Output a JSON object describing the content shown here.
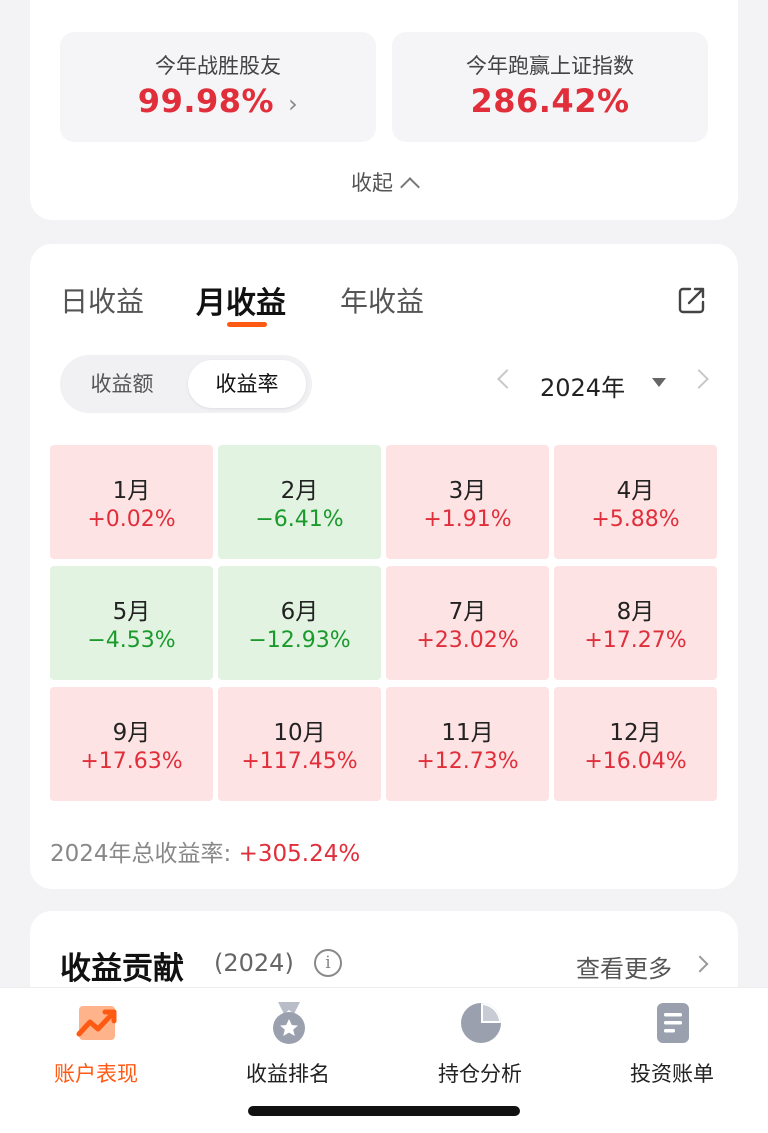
{
  "top_stats": {
    "beat_friends_label": "今年战胜股友",
    "beat_friends_value": "99.98%",
    "beat_index_label": "今年跑赢上证指数",
    "beat_index_value": "286.42%",
    "collapse_label": "收起"
  },
  "tabs": [
    {
      "label": "日收益",
      "active": false
    },
    {
      "label": "月收益",
      "active": true
    },
    {
      "label": "年收益",
      "active": false
    }
  ],
  "toggle": {
    "amount_label": "收益额",
    "rate_label": "收益率",
    "active": "rate"
  },
  "year_selector": {
    "label": "2024年"
  },
  "months": [
    {
      "name": "1月",
      "value": "+0.02%",
      "trend": "pos"
    },
    {
      "name": "2月",
      "value": "−6.41%",
      "trend": "neg"
    },
    {
      "name": "3月",
      "value": "+1.91%",
      "trend": "pos"
    },
    {
      "name": "4月",
      "value": "+5.88%",
      "trend": "pos"
    },
    {
      "name": "5月",
      "value": "−4.53%",
      "trend": "neg"
    },
    {
      "name": "6月",
      "value": "−12.93%",
      "trend": "neg"
    },
    {
      "name": "7月",
      "value": "+23.02%",
      "trend": "pos"
    },
    {
      "name": "8月",
      "value": "+17.27%",
      "trend": "pos"
    },
    {
      "name": "9月",
      "value": "+17.63%",
      "trend": "pos"
    },
    {
      "name": "10月",
      "value": "+117.45%",
      "trend": "pos"
    },
    {
      "name": "11月",
      "value": "+12.73%",
      "trend": "pos"
    },
    {
      "name": "12月",
      "value": "+16.04%",
      "trend": "pos"
    }
  ],
  "total": {
    "label": "2024年总收益率:",
    "value": "+305.24%"
  },
  "contribution": {
    "title": "收益贡献",
    "year": "(2024)",
    "info_icon": "info-icon",
    "see_more": "查看更多"
  },
  "bottom_nav": [
    {
      "label": "账户表现",
      "icon": "trend-chart-icon",
      "active": true
    },
    {
      "label": "收益排名",
      "icon": "medal-icon",
      "active": false
    },
    {
      "label": "持仓分析",
      "icon": "pie-chart-icon",
      "active": false
    },
    {
      "label": "投资账单",
      "icon": "bill-icon",
      "active": false
    }
  ],
  "colors": {
    "positive": "#e02e3b",
    "negative": "#1a9a2c",
    "accent": "#ff5a14",
    "positive_bg": "#fde3e3",
    "negative_bg": "#e2f4e1"
  }
}
